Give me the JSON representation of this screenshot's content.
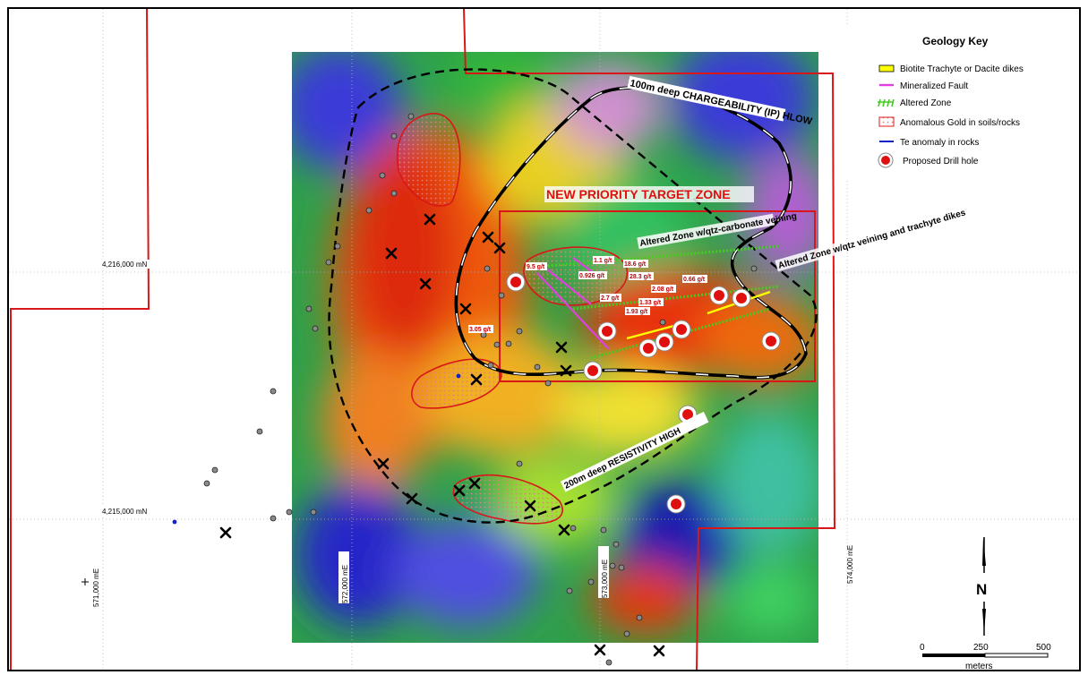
{
  "map": {
    "grid": {
      "northing_upper": "4,216,000 mN",
      "northing_lower": "4,215,000 mN",
      "easting_571": "571,000 mE",
      "easting_572": "572,000 mE",
      "easting_573": "573,000 mE",
      "easting_574": "574,000 mE"
    },
    "annotations": {
      "chargeability": "100m deep CHARGEABILITY (IP) HLOW",
      "priority_target": "NEW PRIORITY TARGET ZONE",
      "altered_zone_carbonate": "Altered Zone w/qtz-carbonate veining",
      "altered_zone_qtz": "Altered Zone w/qtz veining and trachyte dikes",
      "resistivity": "200m deep RESISTIVITY HIGH"
    },
    "assays": [
      "9.5 g/t",
      "1.1 g/t",
      "0.926 g/t",
      "18.6 g/t",
      "28.3 g/t",
      "2.08 g/t",
      "0.66 g/t",
      "2.7 g/t",
      "1.33 g/t",
      "1.93 g/t",
      "3.05 g/t"
    ]
  },
  "legend": {
    "title": "Geology Key",
    "items": [
      {
        "label": "Biotite Trachyte or Dacite dikes",
        "symbol": "yellow-dike-icon",
        "color": "#ffff00"
      },
      {
        "label": "Mineralized Fault",
        "symbol": "magenta-fault-icon",
        "color": "#e040e0"
      },
      {
        "label": "Altered Zone",
        "symbol": "green-hatch-icon",
        "color": "#44cc22"
      },
      {
        "label": "Anomalous Gold in soils/rocks",
        "symbol": "red-stipple-icon",
        "color": "#d81818"
      },
      {
        "label": "Te anomaly in rocks",
        "symbol": "blue-line-icon",
        "color": "#1122cc"
      },
      {
        "label": "Proposed Drill hole",
        "symbol": "drill-target-icon",
        "color": "#e01010"
      }
    ]
  },
  "north_arrow": {
    "label": "N"
  },
  "scale_bar": {
    "ticks": [
      "0",
      "250",
      "500"
    ],
    "unit": "meters"
  }
}
